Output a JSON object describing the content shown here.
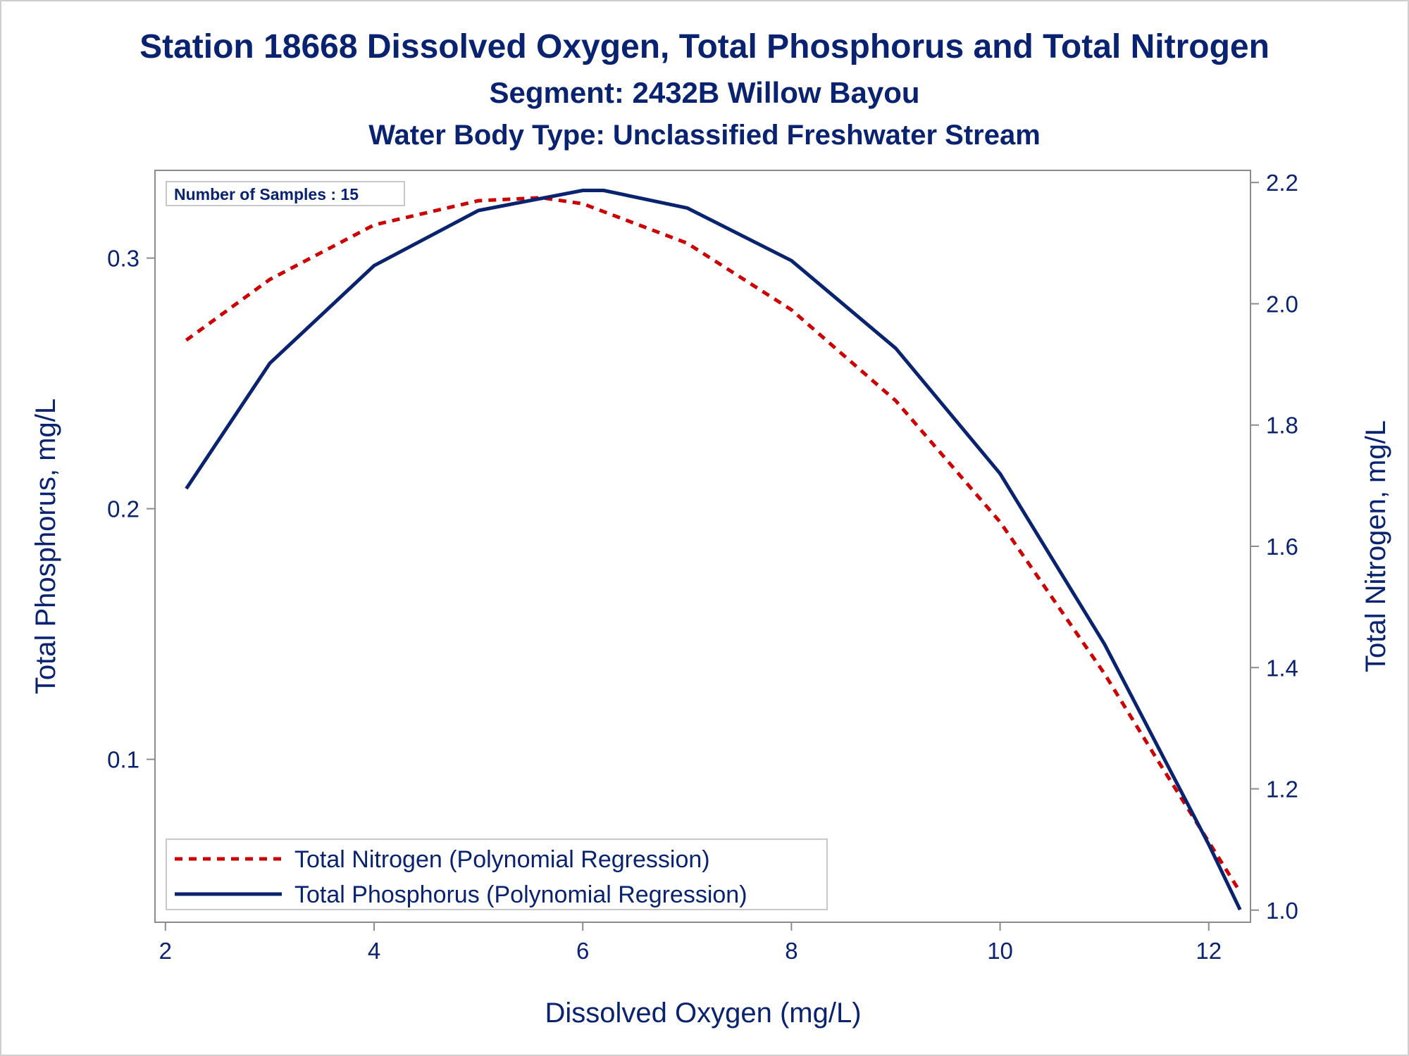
{
  "chart_data": {
    "type": "line",
    "title": "Station 18668  Dissolved Oxygen, Total Phosphorus and Total Nitrogen",
    "subtitle": "Segment: 2432B  Willow Bayou",
    "subtitle2": "Water Body Type: Unclassified Freshwater Stream",
    "xlabel": "Dissolved Oxygen (mg/L)",
    "ylabel_left": "Total Phosphorus, mg/L",
    "ylabel_right": "Total Nitrogen, mg/L",
    "annotation": "Number of Samples : 15",
    "xlim": [
      1.9,
      12.4
    ],
    "ylim_left": [
      0.035,
      0.335
    ],
    "ylim_right": [
      0.98,
      2.22
    ],
    "x_ticks": [
      "2",
      "4",
      "6",
      "8",
      "10",
      "12"
    ],
    "y_ticks_left": [
      "0.1",
      "0.2",
      "0.3"
    ],
    "y_ticks_right": [
      "1.0",
      "1.2",
      "1.4",
      "1.6",
      "1.8",
      "2.0",
      "2.2"
    ],
    "grid": false,
    "legend_position": "bottom-left",
    "series": [
      {
        "name": "Total Nitrogen (Polynomial Regression)",
        "axis": "right",
        "style": "dashed",
        "color": "#cc0000",
        "x": [
          2.2,
          3.0,
          4.0,
          5.0,
          5.6,
          6.0,
          7.0,
          8.0,
          9.0,
          10.0,
          11.0,
          11.5,
          12.3
        ],
        "y": [
          1.94,
          2.04,
          2.13,
          2.17,
          2.175,
          2.165,
          2.1,
          1.99,
          1.84,
          1.64,
          1.39,
          1.25,
          1.03
        ]
      },
      {
        "name": "Total Phosphorus (Polynomial Regression)",
        "axis": "left",
        "style": "solid",
        "color": "#0a2370",
        "x": [
          2.2,
          3.0,
          4.0,
          5.0,
          6.0,
          6.2,
          7.0,
          8.0,
          9.0,
          10.0,
          11.0,
          12.0,
          12.3
        ],
        "y": [
          0.208,
          0.258,
          0.297,
          0.319,
          0.327,
          0.327,
          0.32,
          0.299,
          0.264,
          0.214,
          0.146,
          0.066,
          0.04
        ]
      }
    ]
  }
}
